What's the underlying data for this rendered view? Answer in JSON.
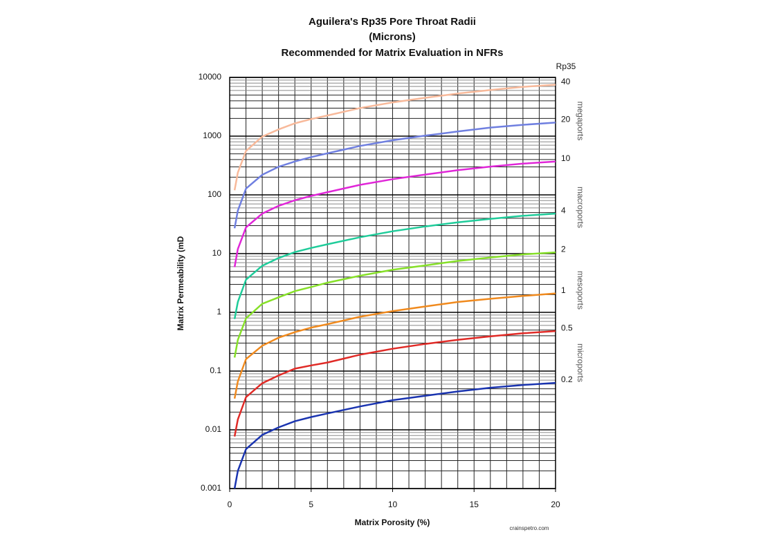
{
  "chart_data": {
    "type": "line",
    "title": [
      "Aguilera's Rp35 Pore Throat Radii",
      "(Microns)",
      "Recommended for Matrix Evaluation in NFRs"
    ],
    "x_label": "Matrix Porosity (%)",
    "y_label": "Matrix Permeability (mD",
    "right_title": "Rp35",
    "annotations": [
      "megaports",
      "macroports",
      "mesoports",
      "microports"
    ],
    "credit": "crainspetro.com",
    "y_log": true,
    "grid": true,
    "xlim": [
      0,
      20
    ],
    "xticks": [
      0,
      5,
      10,
      15,
      20
    ],
    "ylim": [
      0.001,
      10000
    ],
    "yticks": [
      0.001,
      0.01,
      0.1,
      1,
      10,
      100,
      1000,
      10000
    ],
    "x": [
      0.3,
      0.5,
      1,
      2,
      3,
      4,
      5,
      6,
      8,
      10,
      12,
      14,
      16,
      18,
      20
    ],
    "series": [
      {
        "name": "40",
        "color": "#f8b99a",
        "values": [
          120,
          240,
          560,
          980,
          1300,
          1650,
          1950,
          2250,
          3000,
          3750,
          4500,
          5300,
          6100,
          6900,
          7500
        ]
      },
      {
        "name": "20",
        "color": "#6f7fe0",
        "values": [
          27,
          54,
          128,
          220,
          300,
          370,
          440,
          510,
          680,
          850,
          1020,
          1200,
          1400,
          1560,
          1700
        ]
      },
      {
        "name": "10",
        "color": "#e026d8",
        "values": [
          5.9,
          12,
          28,
          48,
          65,
          81,
          96,
          111,
          148,
          185,
          222,
          263,
          303,
          340,
          370
        ]
      },
      {
        "name": "4",
        "color": "#1fcc9a",
        "values": [
          0.77,
          1.5,
          3.6,
          6.2,
          8.4,
          10.6,
          12.5,
          14.4,
          19,
          24,
          29,
          34,
          39,
          44,
          48
        ]
      },
      {
        "name": "2",
        "color": "#86e028",
        "values": [
          0.17,
          0.34,
          0.79,
          1.4,
          1.8,
          2.3,
          2.7,
          3.2,
          4.2,
          5.3,
          6.3,
          7.5,
          8.6,
          9.7,
          10.5
        ]
      },
      {
        "name": "1",
        "color": "#f08a1e",
        "values": [
          0.034,
          0.067,
          0.16,
          0.27,
          0.37,
          0.46,
          0.55,
          0.63,
          0.84,
          1.05,
          1.26,
          1.5,
          1.7,
          1.9,
          2.1
        ]
      },
      {
        "name": "0.5",
        "color": "#e02a26",
        "values": [
          0.0077,
          0.015,
          0.036,
          0.062,
          0.084,
          0.11,
          0.125,
          0.14,
          0.19,
          0.24,
          0.29,
          0.34,
          0.39,
          0.44,
          0.48
        ]
      },
      {
        "name": "0.2",
        "color": "#1a34b0",
        "values": [
          0.001,
          0.002,
          0.0047,
          0.0082,
          0.011,
          0.014,
          0.0165,
          0.019,
          0.025,
          0.032,
          0.038,
          0.045,
          0.052,
          0.058,
          0.063
        ]
      }
    ]
  }
}
